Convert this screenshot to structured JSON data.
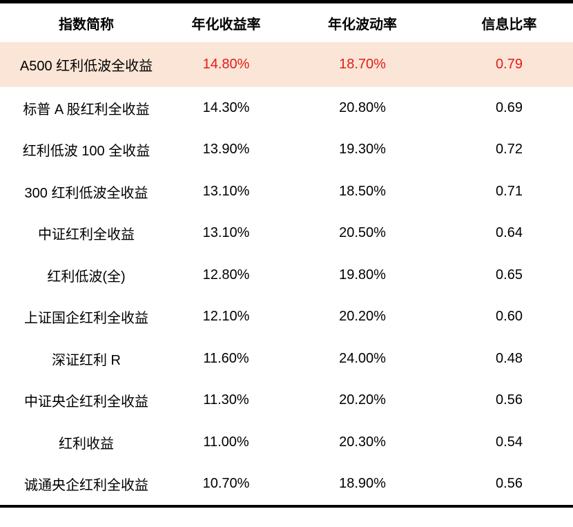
{
  "chart_data": {
    "type": "table",
    "title": "",
    "columns": [
      "指数简称",
      "年化收益率",
      "年化波动率",
      "信息比率"
    ],
    "rows": [
      [
        "A500 红利低波全收益",
        "14.80%",
        "18.70%",
        "0.79"
      ],
      [
        "标普 A 股红利全收益",
        "14.30%",
        "20.80%",
        "0.69"
      ],
      [
        "红利低波 100 全收益",
        "13.90%",
        "19.30%",
        "0.72"
      ],
      [
        "300 红利低波全收益",
        "13.10%",
        "18.50%",
        "0.71"
      ],
      [
        "中证红利全收益",
        "13.10%",
        "20.50%",
        "0.64"
      ],
      [
        "红利低波(全)",
        "12.80%",
        "19.80%",
        "0.65"
      ],
      [
        "上证国企红利全收益",
        "12.10%",
        "20.20%",
        "0.60"
      ],
      [
        "深证红利 R",
        "11.60%",
        "24.00%",
        "0.48"
      ],
      [
        "中证央企红利全收益",
        "11.30%",
        "20.20%",
        "0.56"
      ],
      [
        "红利收益",
        "11.00%",
        "20.30%",
        "0.54"
      ],
      [
        "诚通央企红利全收益",
        "10.70%",
        "18.90%",
        "0.56"
      ]
    ],
    "highlighted_row_index": 0,
    "layout": {
      "column_alignment": "center",
      "grid": "off",
      "top_rule": true,
      "bottom_rule": true
    }
  },
  "colors": {
    "highlight_background": "#fbe5d6",
    "highlight_value_text": "#e41b17",
    "body_text": "#000000",
    "rule": "#000000"
  }
}
